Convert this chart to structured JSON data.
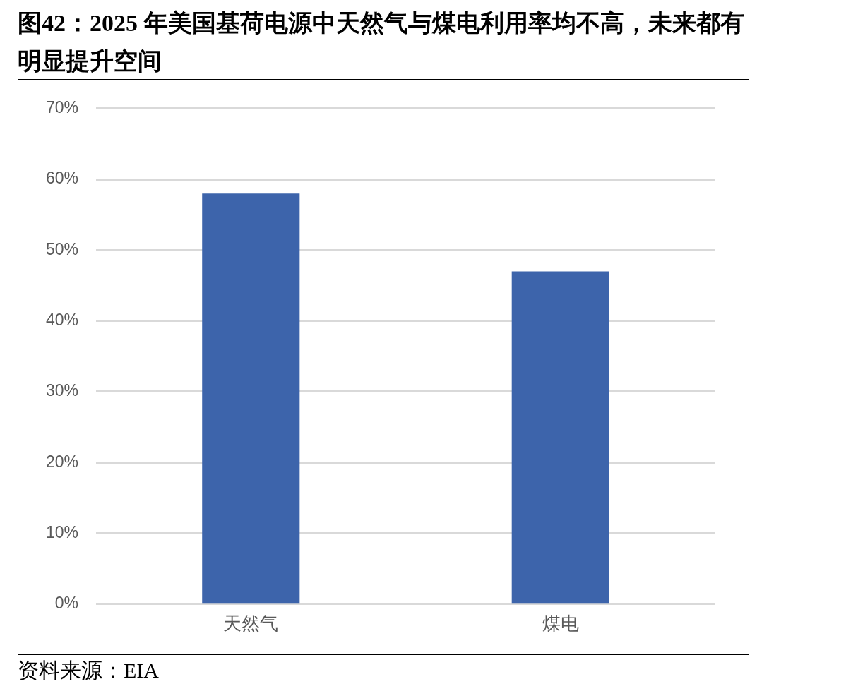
{
  "chart_data": {
    "type": "bar",
    "title": "图42：2025 年美国基荷电源中天然气与煤电利用率均不高，未来都有明显提升空间",
    "categories": [
      "天然气",
      "煤电"
    ],
    "values": [
      58,
      47
    ],
    "color": "#3d64ab",
    "ylim": [
      0,
      70
    ],
    "yticks": [
      {
        "value": 0,
        "label": "0%"
      },
      {
        "value": 10,
        "label": "10%"
      },
      {
        "value": 20,
        "label": "20%"
      },
      {
        "value": 30,
        "label": "30%"
      },
      {
        "value": 40,
        "label": "40%"
      },
      {
        "value": 50,
        "label": "50%"
      },
      {
        "value": 60,
        "label": "60%"
      },
      {
        "value": 70,
        "label": "70%"
      }
    ],
    "grid": "y",
    "legend": false,
    "annotations": [
      "资料来源：EIA"
    ]
  }
}
